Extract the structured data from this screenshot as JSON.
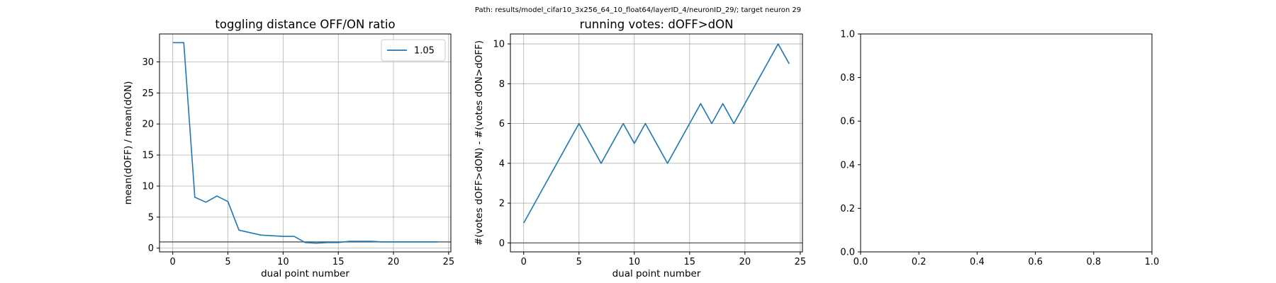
{
  "suptitle": "Path: results/model_cifar10_3x256_64_10_float64/layerID_4/neuronID_29/; target neuron 29",
  "colors": {
    "series": "#1f77b4",
    "refline": "#555555",
    "grid": "#b0b0b0",
    "axes": "#000000"
  },
  "chart_data": [
    {
      "type": "line",
      "title": "toggling distance OFF/ON ratio",
      "xlabel": "dual point number",
      "ylabel": "mean(dOFF) / mean(dON)",
      "xlim": [
        -1.2,
        25.2
      ],
      "ylim": [
        -0.6,
        34.5
      ],
      "xticks": [
        0,
        5,
        10,
        15,
        20,
        25
      ],
      "yticks": [
        0,
        5,
        10,
        15,
        20,
        25,
        30
      ],
      "grid": true,
      "legend": {
        "placement": "top-right",
        "entries": [
          "1.05"
        ]
      },
      "reference_line": 1.0,
      "series": [
        {
          "name": "1.05",
          "x": [
            0,
            1,
            2,
            3,
            4,
            5,
            6,
            7,
            8,
            9,
            10,
            11,
            12,
            13,
            14,
            15,
            16,
            17,
            18,
            19,
            20,
            21,
            22,
            23,
            24
          ],
          "y": [
            33.1,
            33.1,
            8.2,
            7.4,
            8.4,
            7.5,
            2.9,
            2.5,
            2.1,
            2.0,
            1.9,
            1.9,
            0.9,
            0.8,
            0.9,
            0.9,
            1.1,
            1.1,
            1.1,
            1.0,
            1.0,
            1.0,
            1.0,
            1.0,
            1.0
          ]
        }
      ]
    },
    {
      "type": "line",
      "title": "running votes: dOFF>dON",
      "xlabel": "dual point number",
      "ylabel": "#(votes dOFF>dON) - #(votes dON>dOFF)",
      "xlim": [
        -1.2,
        25.2
      ],
      "ylim": [
        -0.45,
        10.5
      ],
      "xticks": [
        0,
        5,
        10,
        15,
        20,
        25
      ],
      "yticks": [
        0,
        2,
        4,
        6,
        8,
        10
      ],
      "grid": true,
      "reference_line": 0,
      "series": [
        {
          "x": [
            0,
            1,
            2,
            3,
            4,
            5,
            6,
            7,
            8,
            9,
            10,
            11,
            12,
            13,
            14,
            15,
            16,
            17,
            18,
            19,
            20,
            21,
            22,
            23,
            24
          ],
          "y": [
            1,
            2,
            3,
            4,
            5,
            6,
            5,
            4,
            5,
            6,
            5,
            6,
            5,
            4,
            5,
            6,
            7,
            6,
            7,
            6,
            7,
            8,
            9,
            10,
            9
          ]
        }
      ]
    },
    {
      "type": "line",
      "title": "",
      "xlabel": "",
      "ylabel": "",
      "xlim": [
        0,
        1
      ],
      "ylim": [
        0,
        1
      ],
      "xticks": [
        0.0,
        0.2,
        0.4,
        0.6,
        0.8,
        1.0
      ],
      "yticks": [
        0.0,
        0.2,
        0.4,
        0.6,
        0.8,
        1.0
      ],
      "grid": false,
      "series": []
    }
  ]
}
